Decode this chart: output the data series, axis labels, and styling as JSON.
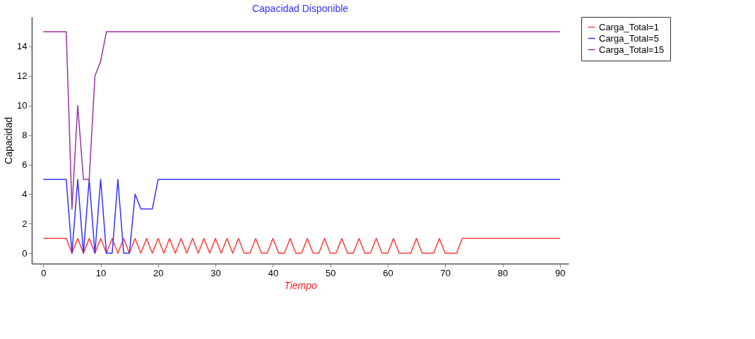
{
  "chart_data": {
    "type": "line",
    "title": "Capacidad Disponible",
    "xlabel": "Tiempo",
    "ylabel": "Capacidad",
    "x": [
      0,
      1,
      2,
      3,
      4,
      5,
      6,
      7,
      8,
      9,
      10,
      11,
      12,
      13,
      14,
      15,
      16,
      17,
      18,
      19,
      20,
      21,
      22,
      23,
      24,
      25,
      26,
      27,
      28,
      29,
      30,
      31,
      32,
      33,
      34,
      35,
      36,
      37,
      38,
      39,
      40,
      41,
      42,
      43,
      44,
      45,
      46,
      47,
      48,
      49,
      50,
      51,
      52,
      53,
      54,
      55,
      56,
      57,
      58,
      59,
      60,
      61,
      62,
      63,
      64,
      65,
      66,
      67,
      68,
      69,
      70,
      71,
      72,
      73,
      74,
      75,
      76,
      77,
      78,
      79,
      80,
      81,
      82,
      83,
      84,
      85,
      86,
      87,
      88,
      89,
      90
    ],
    "series": [
      {
        "name": "Carga_Total=1",
        "color": "#ff4040",
        "values": [
          1,
          1,
          1,
          1,
          1,
          0,
          1,
          0,
          1,
          0,
          1,
          0,
          1,
          0,
          1,
          0,
          1,
          0,
          1,
          0,
          1,
          0,
          1,
          0,
          1,
          0,
          1,
          0,
          1,
          0,
          1,
          0,
          1,
          0,
          1,
          0,
          0,
          1,
          0,
          0,
          1,
          0,
          0,
          1,
          0,
          0,
          1,
          0,
          0,
          1,
          0,
          0,
          1,
          0,
          0,
          1,
          0,
          0,
          1,
          0,
          0,
          1,
          0,
          0,
          0,
          1,
          0,
          0,
          0,
          1,
          0,
          0,
          0,
          1,
          1,
          1,
          1,
          1,
          1,
          1,
          1,
          1,
          1,
          1,
          1,
          1,
          1,
          1,
          1,
          1,
          1
        ]
      },
      {
        "name": "Carga_Total=5",
        "color": "#3333ff",
        "values": [
          5,
          5,
          5,
          5,
          5,
          0,
          5,
          0,
          5,
          0,
          5,
          0,
          0,
          5,
          0,
          0,
          4,
          3,
          3,
          3,
          5,
          5,
          5,
          5,
          5,
          5,
          5,
          5,
          5,
          5,
          5,
          5,
          5,
          5,
          5,
          5,
          5,
          5,
          5,
          5,
          5,
          5,
          5,
          5,
          5,
          5,
          5,
          5,
          5,
          5,
          5,
          5,
          5,
          5,
          5,
          5,
          5,
          5,
          5,
          5,
          5,
          5,
          5,
          5,
          5,
          5,
          5,
          5,
          5,
          5,
          5,
          5,
          5,
          5,
          5,
          5,
          5,
          5,
          5,
          5,
          5,
          5,
          5,
          5,
          5,
          5,
          5,
          5,
          5,
          5,
          5
        ]
      },
      {
        "name": "Carga_Total=15",
        "color": "#9933a0",
        "values": [
          15,
          15,
          15,
          15,
          15,
          3,
          10,
          5,
          5,
          12,
          13,
          15,
          15,
          15,
          15,
          15,
          15,
          15,
          15,
          15,
          15,
          15,
          15,
          15,
          15,
          15,
          15,
          15,
          15,
          15,
          15,
          15,
          15,
          15,
          15,
          15,
          15,
          15,
          15,
          15,
          15,
          15,
          15,
          15,
          15,
          15,
          15,
          15,
          15,
          15,
          15,
          15,
          15,
          15,
          15,
          15,
          15,
          15,
          15,
          15,
          15,
          15,
          15,
          15,
          15,
          15,
          15,
          15,
          15,
          15,
          15,
          15,
          15,
          15,
          15,
          15,
          15,
          15,
          15,
          15,
          15,
          15,
          15,
          15,
          15,
          15,
          15,
          15,
          15,
          15,
          15
        ]
      }
    ],
    "xlim": [
      -2,
      91.5
    ],
    "xticks": [
      0,
      10,
      20,
      30,
      40,
      50,
      60,
      70,
      80,
      90
    ],
    "ylim": [
      -0.7,
      16
    ],
    "yticks": [
      0,
      2,
      4,
      6,
      8,
      10,
      12,
      14
    ],
    "grid": false,
    "legend": "right",
    "marker": "none",
    "line_style": "solid"
  }
}
